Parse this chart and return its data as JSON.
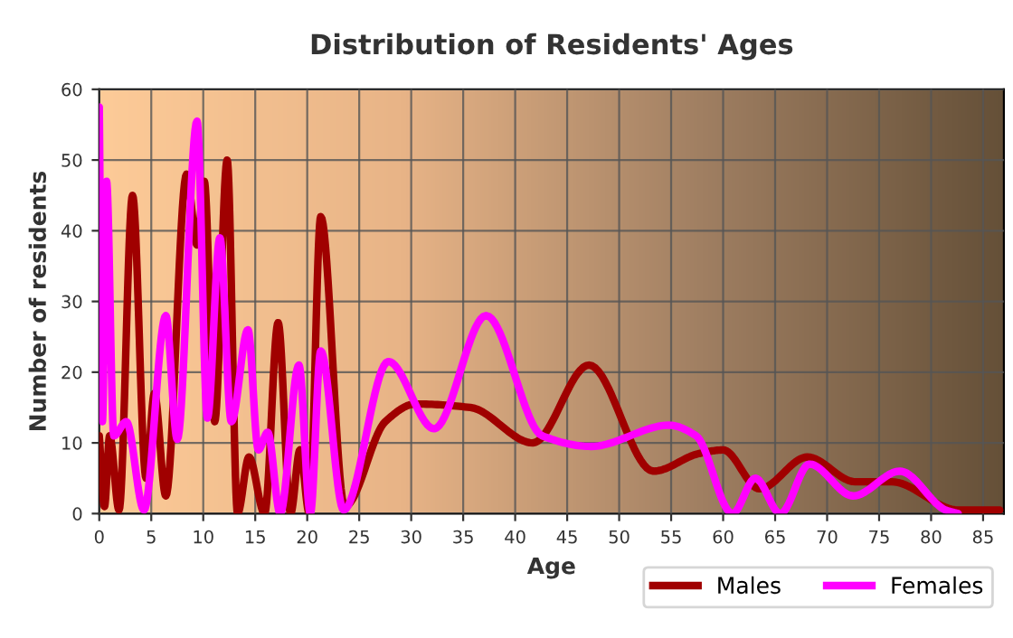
{
  "chart_data": {
    "type": "line",
    "title": "Distribution of Residents' Ages",
    "xlabel": "Age",
    "ylabel": "Number of residents",
    "xlim": [
      0,
      87
    ],
    "xticks": [
      0,
      5,
      10,
      15,
      20,
      25,
      30,
      35,
      40,
      45,
      50,
      55,
      60,
      65,
      70,
      75,
      80,
      85
    ],
    "ylim": [
      0,
      60
    ],
    "yticks": [
      0,
      10,
      20,
      30,
      40,
      50,
      60
    ],
    "grid": true,
    "legend": "bottom",
    "line_style": "solid",
    "marker": "none",
    "series": [
      {
        "name": "Males",
        "color": "#a00000",
        "x": [
          0,
          0.5,
          1,
          1.9,
          3.2,
          4.5,
          5.3,
          6.4,
          8.4,
          9.4,
          10.1,
          11.1,
          12.3,
          13.3,
          14.4,
          15.9,
          17.2,
          18.4,
          19.3,
          20.2,
          21.3,
          23.6,
          27.5,
          30.4,
          35.7,
          41.7,
          47.1,
          53.3,
          57.7,
          60,
          63.5,
          68.1,
          72.7,
          76.2,
          82.6,
          86.6
        ],
        "values": [
          11,
          1,
          11,
          0.5,
          45,
          5,
          17,
          2.5,
          48,
          38,
          47,
          13,
          50,
          0,
          8,
          0,
          27,
          0,
          9,
          0,
          42,
          1,
          13,
          15.5,
          15,
          10,
          21,
          6,
          8.5,
          9,
          3.5,
          8,
          4.5,
          4.5,
          0.5,
          0.5
        ]
      },
      {
        "name": "Females",
        "color": "#ff00ff",
        "x": [
          0,
          0.3,
          0.7,
          1.4,
          2.6,
          4.3,
          6.4,
          7.5,
          9.4,
          10.4,
          11.6,
          12.7,
          14.3,
          15.3,
          16.2,
          17.4,
          19.2,
          20.3,
          21.3,
          23.5,
          27.8,
          32.2,
          37.2,
          42.6,
          47.3,
          54.8,
          57.4,
          60.9,
          63.1,
          65.5,
          68.3,
          72.5,
          77,
          81.4,
          82.6
        ],
        "values": [
          57.5,
          13,
          47,
          11,
          13,
          0.5,
          28,
          10.5,
          55.5,
          13.5,
          39,
          13,
          26,
          9,
          11.5,
          0,
          21,
          0,
          23,
          0.5,
          21.5,
          12,
          28,
          11,
          9.5,
          12.5,
          11,
          0,
          5,
          0,
          7,
          2.5,
          6,
          0.5,
          0
        ]
      }
    ]
  }
}
